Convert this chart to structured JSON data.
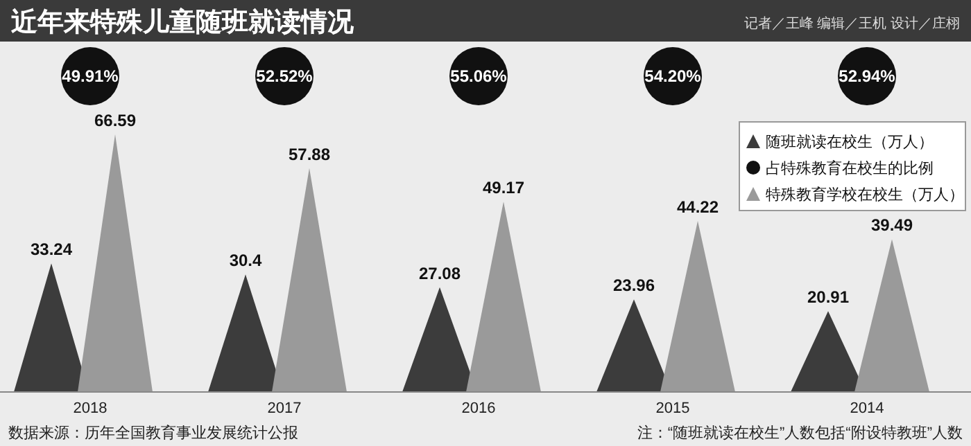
{
  "chart_data": {
    "type": "bar",
    "title": "近年来特殊儿童随班就读情况",
    "subtitle": "记者／王峰 编辑／王机 设计／庄栩",
    "categories": [
      "2018",
      "2017",
      "2016",
      "2015",
      "2014"
    ],
    "series": [
      {
        "name": "随班就读在校生（万人）",
        "color": "#3c3c3c",
        "values": [
          33.24,
          30.4,
          27.08,
          23.96,
          20.91
        ]
      },
      {
        "name": "特殊教育学校在校生（万人）",
        "color": "#9a9a9a",
        "values": [
          66.59,
          57.88,
          49.17,
          44.22,
          39.49
        ]
      }
    ],
    "data_labels": true,
    "legend": "right",
    "marker": "triangle",
    "annotations": [
      "数据来源：历年全国教育事业发展统计公报",
      "注：“随班就读在校生”人数包括“附设特教班”人数",
      "占特殊教育在校生的比例",
      "49.91%",
      "52.52%",
      "55.06%",
      "54.20%",
      "52.94%"
    ]
  }
}
